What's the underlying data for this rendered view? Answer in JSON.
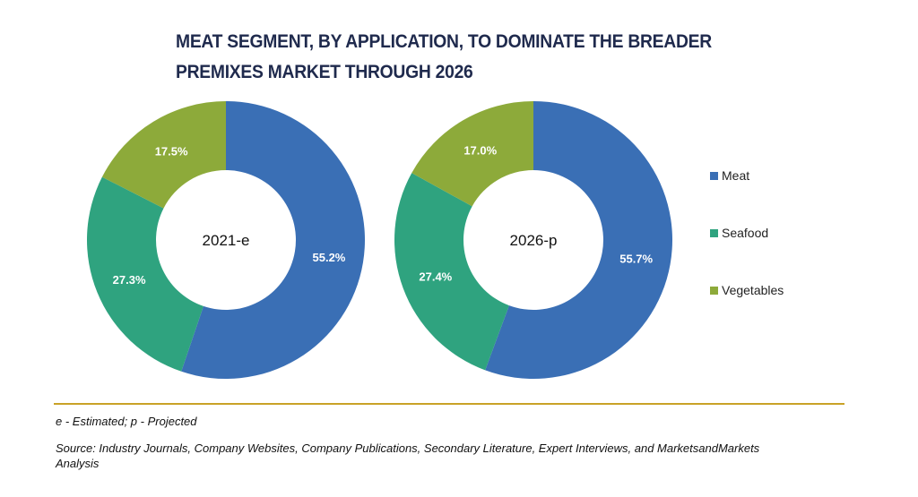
{
  "title": "MEAT SEGMENT, BY APPLICATION, TO DOMINATE THE BREADER PREMIXES MARKET THROUGH 2026",
  "colors": {
    "meat": "#3a6fb5",
    "seafood": "#2fa37f",
    "vegetables": "#8daa3a"
  },
  "chart_data": [
    {
      "type": "pie",
      "center_label": "2021-e",
      "categories": [
        "Meat",
        "Seafood",
        "Vegetables"
      ],
      "values": [
        55.2,
        27.3,
        17.5
      ],
      "labels": [
        "55.2%",
        "27.3%",
        "17.5%"
      ]
    },
    {
      "type": "pie",
      "center_label": "2026-p",
      "categories": [
        "Meat",
        "Seafood",
        "Vegetables"
      ],
      "values": [
        55.7,
        27.4,
        17.0
      ],
      "labels": [
        "55.7%",
        "27.4%",
        "17.0%"
      ]
    }
  ],
  "legend": [
    {
      "label": "Meat",
      "color": "#3a6fb5"
    },
    {
      "label": "Seafood",
      "color": "#2fa37f"
    },
    {
      "label": "Vegetables",
      "color": "#8daa3a"
    }
  ],
  "footnote": "e - Estimated; p - Projected",
  "source": "Source: Industry Journals, Company Websites, Company Publications, Secondary Literature, Expert Interviews, and MarketsandMarkets Analysis"
}
